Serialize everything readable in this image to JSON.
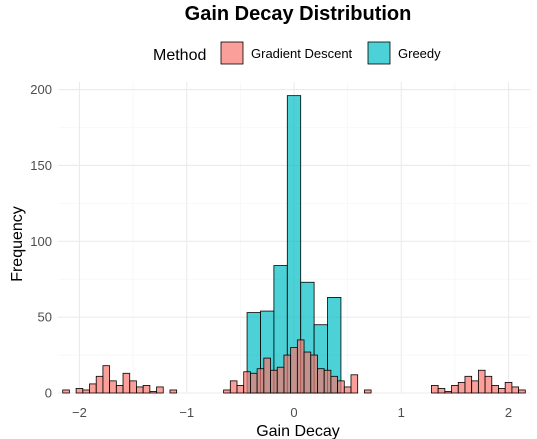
{
  "chart_data": {
    "type": "histogram",
    "title": "Gain Decay Distribution",
    "xlabel": "Gain Decay",
    "ylabel": "Frequency",
    "legend_title": "Method",
    "legend_position": "top",
    "grid": true,
    "xlim": [
      -2.2,
      2.2
    ],
    "ylim": [
      0,
      205
    ],
    "x_ticks": [
      -2,
      -1,
      0,
      1,
      2
    ],
    "x_tick_labels": [
      "−2",
      "−1",
      "0",
      "1",
      "2"
    ],
    "y_ticks": [
      0,
      50,
      100,
      150,
      200
    ],
    "y_tick_labels": [
      "0",
      "50",
      "100",
      "150",
      "200"
    ],
    "series": [
      {
        "name": "Gradient Descent",
        "color": "#F8766D",
        "bins": [
          {
            "x": -2.125,
            "y": 2
          },
          {
            "x": -2.0625,
            "y": 0
          },
          {
            "x": -2.0,
            "y": 3
          },
          {
            "x": -1.9375,
            "y": 2
          },
          {
            "x": -1.875,
            "y": 6
          },
          {
            "x": -1.8125,
            "y": 11
          },
          {
            "x": -1.75,
            "y": 18
          },
          {
            "x": -1.6875,
            "y": 8
          },
          {
            "x": -1.625,
            "y": 5
          },
          {
            "x": -1.5625,
            "y": 13
          },
          {
            "x": -1.5,
            "y": 8
          },
          {
            "x": -1.4375,
            "y": 4
          },
          {
            "x": -1.375,
            "y": 5
          },
          {
            "x": -1.3125,
            "y": 1
          },
          {
            "x": -1.25,
            "y": 4
          },
          {
            "x": -1.1875,
            "y": 0
          },
          {
            "x": -1.125,
            "y": 2
          },
          {
            "x": -1.0625,
            "y": 0
          },
          {
            "x": -1.0,
            "y": 0
          },
          {
            "x": -0.9375,
            "y": 0
          },
          {
            "x": -0.875,
            "y": 0
          },
          {
            "x": -0.8125,
            "y": 0
          },
          {
            "x": -0.75,
            "y": 0
          },
          {
            "x": -0.6875,
            "y": 0
          },
          {
            "x": -0.625,
            "y": 2
          },
          {
            "x": -0.5625,
            "y": 8
          },
          {
            "x": -0.5,
            "y": 5
          },
          {
            "x": -0.4375,
            "y": 14
          },
          {
            "x": -0.375,
            "y": 13
          },
          {
            "x": -0.3125,
            "y": 16
          },
          {
            "x": -0.25,
            "y": 23
          },
          {
            "x": -0.1875,
            "y": 15
          },
          {
            "x": -0.125,
            "y": 17
          },
          {
            "x": -0.0625,
            "y": 25
          },
          {
            "x": 0.0,
            "y": 30
          },
          {
            "x": 0.0625,
            "y": 35
          },
          {
            "x": 0.125,
            "y": 27
          },
          {
            "x": 0.1875,
            "y": 25
          },
          {
            "x": 0.25,
            "y": 16
          },
          {
            "x": 0.3125,
            "y": 15
          },
          {
            "x": 0.375,
            "y": 11
          },
          {
            "x": 0.4375,
            "y": 8
          },
          {
            "x": 0.5,
            "y": 4
          },
          {
            "x": 0.5625,
            "y": 12
          },
          {
            "x": 0.625,
            "y": 0
          },
          {
            "x": 0.6875,
            "y": 2
          },
          {
            "x": 0.75,
            "y": 0
          },
          {
            "x": 0.8125,
            "y": 0
          },
          {
            "x": 0.875,
            "y": 0
          },
          {
            "x": 0.9375,
            "y": 0
          },
          {
            "x": 1.0,
            "y": 0
          },
          {
            "x": 1.0625,
            "y": 0
          },
          {
            "x": 1.125,
            "y": 0
          },
          {
            "x": 1.1875,
            "y": 0
          },
          {
            "x": 1.25,
            "y": 0
          },
          {
            "x": 1.3125,
            "y": 5
          },
          {
            "x": 1.375,
            "y": 3
          },
          {
            "x": 1.4375,
            "y": 1
          },
          {
            "x": 1.5,
            "y": 5
          },
          {
            "x": 1.5625,
            "y": 7
          },
          {
            "x": 1.625,
            "y": 11
          },
          {
            "x": 1.6875,
            "y": 8
          },
          {
            "x": 1.75,
            "y": 15
          },
          {
            "x": 1.8125,
            "y": 11
          },
          {
            "x": 1.875,
            "y": 5
          },
          {
            "x": 1.9375,
            "y": 3
          },
          {
            "x": 2.0,
            "y": 7
          },
          {
            "x": 2.0625,
            "y": 4
          },
          {
            "x": 2.125,
            "y": 2
          }
        ]
      },
      {
        "name": "Greedy",
        "color": "#00BFC4",
        "bins": [
          {
            "x": -0.375,
            "y": 53
          },
          {
            "x": -0.25,
            "y": 54
          },
          {
            "x": -0.125,
            "y": 84
          },
          {
            "x": 0.0,
            "y": 196
          },
          {
            "x": 0.125,
            "y": 73
          },
          {
            "x": 0.25,
            "y": 45
          },
          {
            "x": 0.375,
            "y": 63
          }
        ]
      }
    ]
  }
}
